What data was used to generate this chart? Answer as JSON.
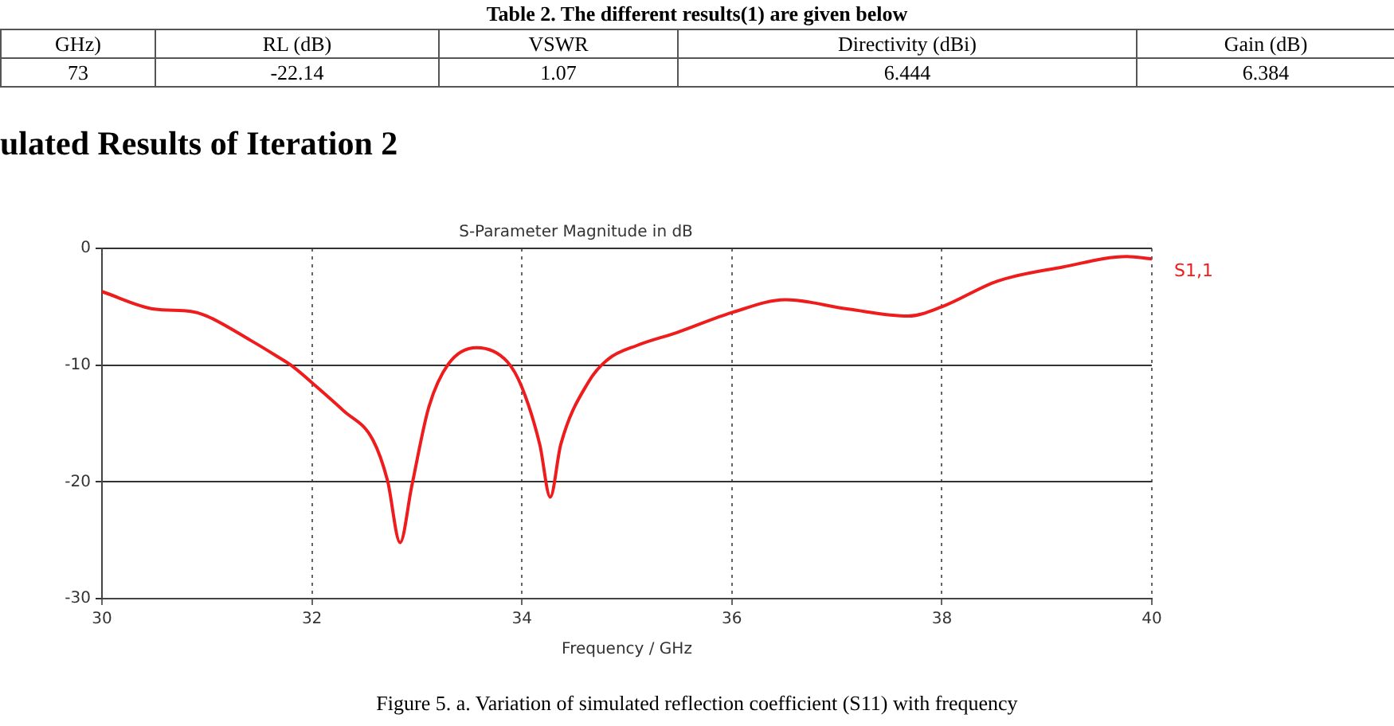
{
  "chart_data": {
    "type": "line",
    "title": "S-Parameter Magnitude in dB",
    "xlabel": "Frequency / GHz",
    "annotations": [
      "Table 2. The different results(1) are given below",
      "GHz)",
      "RL (dB)",
      "VSWR",
      "Directivity (dBi)",
      "Gain (dB)",
      "73",
      "-22.14",
      "1.07",
      "6.444",
      "6.384",
      "ulated Results of Iteration 2",
      "Figure 5. a. Variation of simulated reflection coefficient (S11) with frequency"
    ],
    "xlim": [
      30,
      40
    ],
    "xticks": [
      30,
      32,
      34,
      36,
      38,
      40
    ],
    "ylim": [
      -30,
      0
    ],
    "yticks": [
      -30,
      -20,
      -10,
      0
    ],
    "grid": true,
    "series": [
      {
        "name": "S1,1",
        "color": "#ee1c1c",
        "x": [
          30,
          30.5,
          30.85,
          31.0,
          31.42,
          31.66,
          31.8,
          32.0,
          32.3,
          32.58,
          32.72,
          32.84,
          32.95,
          33.11,
          33.3,
          33.57,
          33.86,
          34.0,
          34.17,
          34.27,
          34.37,
          34.63,
          34.82,
          35.1,
          35.48,
          36.0,
          36.51,
          37.11,
          37.68,
          38.0,
          38.53,
          39.15,
          39.76,
          40
        ],
        "values": [
          -3.7,
          -5.2,
          -5.4,
          -5.8,
          -7.9,
          -9.2,
          -10,
          -11.5,
          -13.9,
          -16.4,
          -19.9,
          -25.2,
          -20.4,
          -13.7,
          -9.9,
          -8.5,
          -9.7,
          -11.9,
          -16.8,
          -21.3,
          -16.8,
          -11.5,
          -9.5,
          -8.3,
          -7.2,
          -5.5,
          -4.4,
          -5.2,
          -5.8,
          -5.0,
          -2.8,
          -1.6,
          -0.7,
          -0.9
        ]
      }
    ]
  }
}
